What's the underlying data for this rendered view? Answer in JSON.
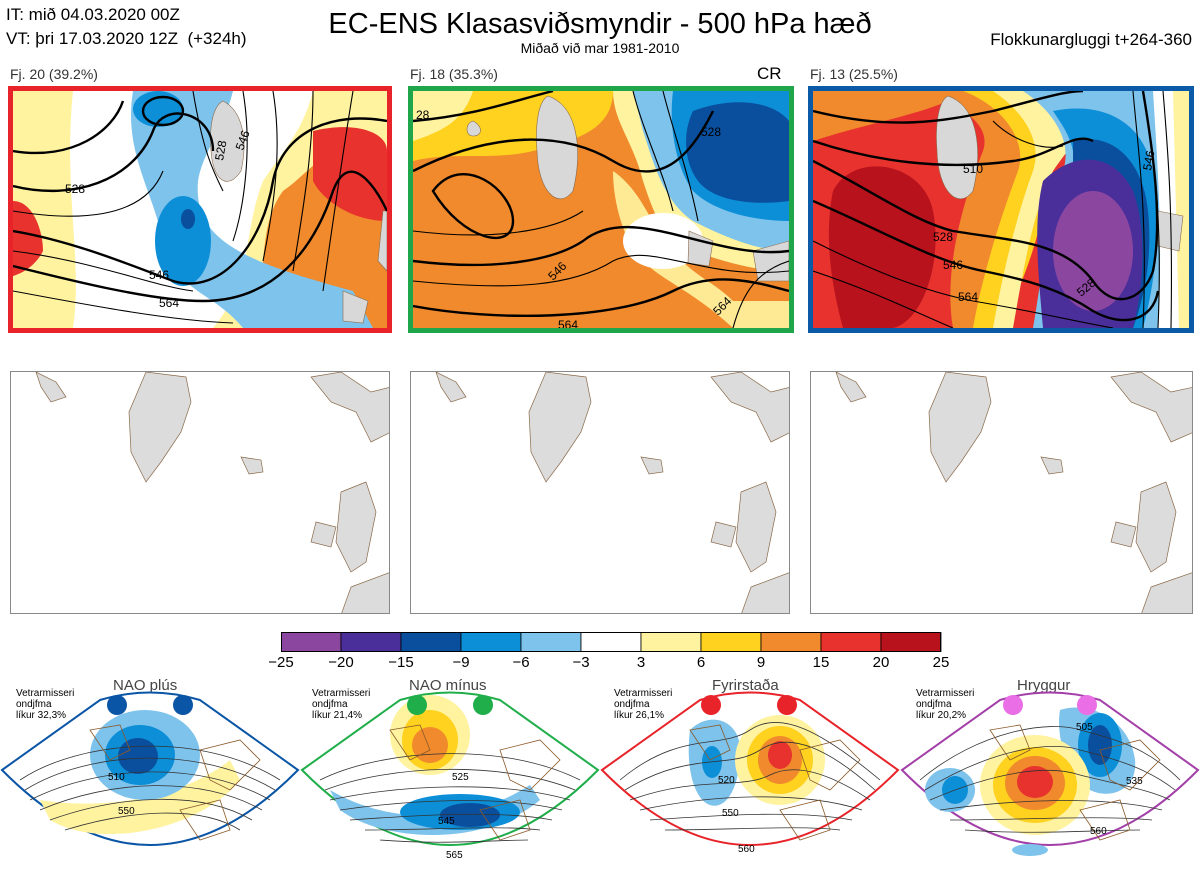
{
  "header": {
    "it_line": "IT: mið 04.03.2020 00Z",
    "vt_line": "VT: þri 17.03.2020 12Z  (+324h)",
    "title": "EC-ENS Klasasviðsmyndir - 500 hPa hæð",
    "subtitle": "Miðað við mar 1981-2010",
    "window": "Flokkunargluggi t+264-360"
  },
  "clusters": [
    {
      "label": "Fj. 20 (39.2%)",
      "border": "#e8232a",
      "tag": "",
      "contours": [
        "528",
        "546",
        "564",
        "546",
        "528"
      ]
    },
    {
      "label": "Fj. 18 (35.3%)",
      "border": "#1fa64a",
      "tag": "CR",
      "contours": [
        "528",
        "546",
        "564",
        "564",
        "28"
      ]
    },
    {
      "label": "Fj. 13 (25.5%)",
      "border": "#0a5aa8",
      "tag": "",
      "contours": [
        "510",
        "528",
        "546",
        "564",
        "528",
        "546"
      ]
    }
  ],
  "colorbar": {
    "ticks": [
      "−25",
      "−20",
      "−15",
      "−9",
      "−6",
      "−3",
      "3",
      "6",
      "9",
      "15",
      "20",
      "25"
    ],
    "colors": [
      "#8b46a0",
      "#4a2f9a",
      "#0a4f9e",
      "#0d8fd8",
      "#7ec3ec",
      "#ffffff",
      "#fff3a0",
      "#ffd21f",
      "#f08a2c",
      "#e8322e",
      "#b8121c"
    ]
  },
  "regimes": [
    {
      "title": "NAO plús",
      "note_lines": [
        "Vetrarmisseri",
        "ondjfma",
        "líkur 32,3%"
      ],
      "color": "#0a55a5",
      "labels": [
        "510",
        "550"
      ]
    },
    {
      "title": "NAO mínus",
      "note_lines": [
        "Vetrarmisseri",
        "ondjfma",
        "líkur 21,4%"
      ],
      "color": "#1fae4a",
      "labels": [
        "525",
        "545",
        "565"
      ]
    },
    {
      "title": "Fyrirstaða",
      "note_lines": [
        "Vetrarmisseri",
        "ondjfma",
        "líkur 26,1%"
      ],
      "color": "#e8232a",
      "labels": [
        "520",
        "550",
        "560"
      ]
    },
    {
      "title": "Hryggur",
      "note_lines": [
        "Vetrarmisseri",
        "ondjfma",
        "líkur 20,2%"
      ],
      "color": "#ea6fe6",
      "labels": [
        "505",
        "535",
        "560"
      ]
    }
  ]
}
